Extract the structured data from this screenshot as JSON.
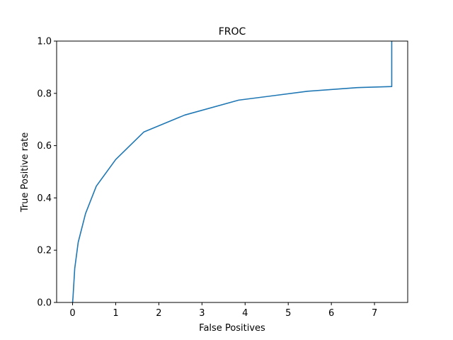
{
  "chart_data": {
    "type": "line",
    "title": "FROC",
    "xlabel": "False Positives",
    "ylabel": "True Positive rate",
    "xlim": [
      -0.37,
      7.77
    ],
    "ylim": [
      0.0,
      1.0
    ],
    "xticks": [
      0,
      1,
      2,
      3,
      4,
      5,
      6,
      7
    ],
    "xtick_labels": [
      "0",
      "1",
      "2",
      "3",
      "4",
      "5",
      "6",
      "7"
    ],
    "yticks": [
      0.0,
      0.2,
      0.4,
      0.6,
      0.8,
      1.0
    ],
    "ytick_labels": [
      "0.0",
      "0.2",
      "0.4",
      "0.6",
      "0.8",
      "1.0"
    ],
    "grid": false,
    "series": [
      {
        "color": "#1f77b4",
        "x": [
          0.0,
          0.01,
          0.05,
          0.13,
          0.3,
          0.55,
          1.0,
          1.65,
          2.6,
          3.85,
          5.45,
          6.6,
          7.4,
          7.4
        ],
        "y": [
          0.0,
          0.02,
          0.13,
          0.23,
          0.34,
          0.445,
          0.547,
          0.652,
          0.717,
          0.774,
          0.808,
          0.822,
          0.826,
          1.0
        ]
      }
    ]
  }
}
